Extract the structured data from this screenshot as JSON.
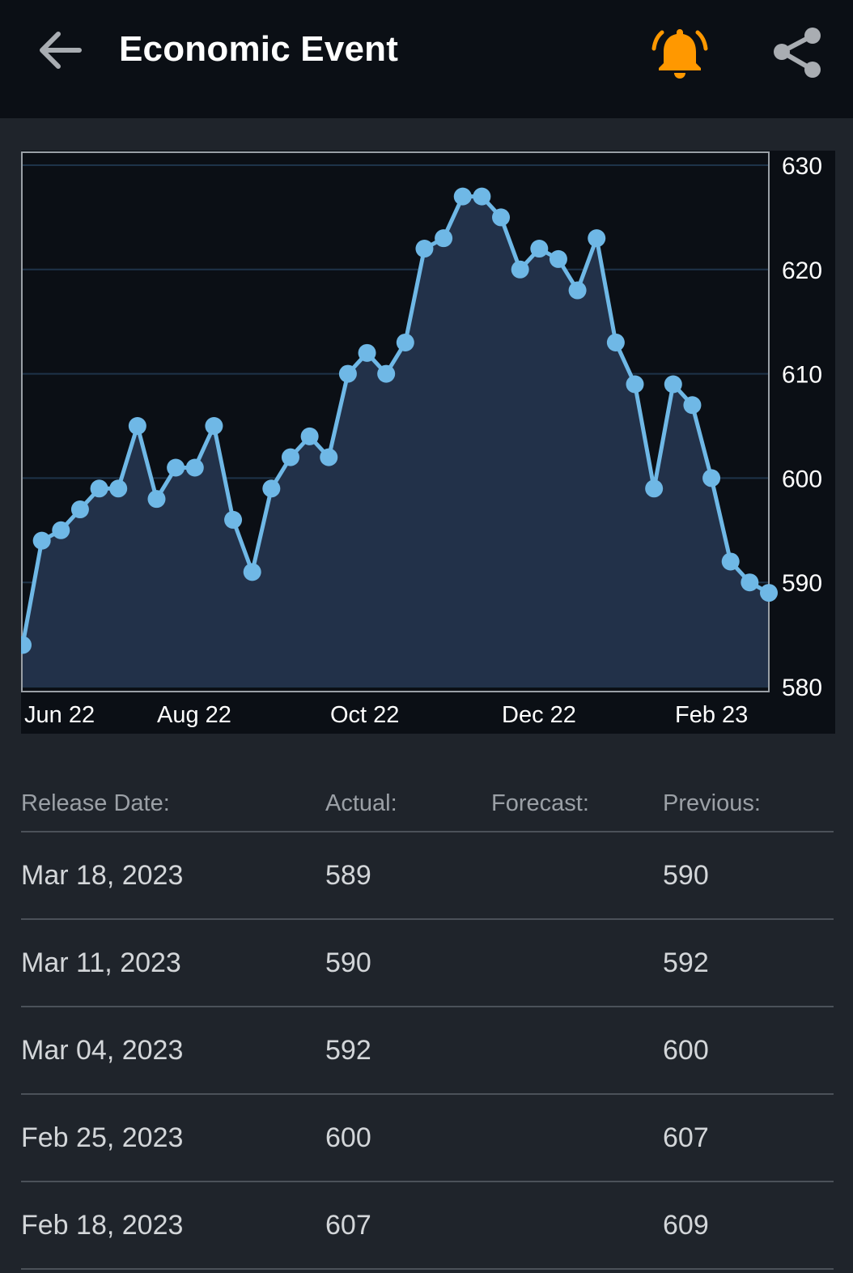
{
  "header": {
    "title": "Economic Event",
    "back_icon": "arrow-left-icon",
    "alert_icon": "bell-icon",
    "share_icon": "share-icon",
    "alert_color": "#ff9800"
  },
  "chart_data": {
    "type": "area",
    "y_axis_position": "right",
    "ylim": [
      580,
      630
    ],
    "yticks": [
      "630",
      "620",
      "610",
      "600",
      "590",
      "580"
    ],
    "xticks": [
      "Jun 22",
      "Aug 22",
      "Oct 22",
      "Dec 22",
      "Feb 23"
    ],
    "grid": true,
    "line_color": "#6fb8e6",
    "fill_color": "#223149",
    "values": [
      584,
      594,
      595,
      597,
      599,
      599,
      605,
      598,
      601,
      601,
      605,
      596,
      591,
      599,
      602,
      604,
      602,
      610,
      612,
      610,
      613,
      622,
      623,
      627,
      627,
      625,
      620,
      622,
      621,
      618,
      623,
      613,
      609,
      599,
      609,
      607,
      600,
      592,
      590,
      589
    ]
  },
  "table": {
    "headers": {
      "release_date": "Release Date:",
      "actual": "Actual:",
      "forecast": "Forecast:",
      "previous": "Previous:"
    },
    "rows": [
      {
        "date": "Mar 18, 2023",
        "actual": "589",
        "forecast": "",
        "previous": "590"
      },
      {
        "date": "Mar 11, 2023",
        "actual": "590",
        "forecast": "",
        "previous": "592"
      },
      {
        "date": "Mar 04, 2023",
        "actual": "592",
        "forecast": "",
        "previous": "600"
      },
      {
        "date": "Feb 25, 2023",
        "actual": "600",
        "forecast": "",
        "previous": "607"
      },
      {
        "date": "Feb 18, 2023",
        "actual": "607",
        "forecast": "",
        "previous": "609"
      }
    ]
  }
}
